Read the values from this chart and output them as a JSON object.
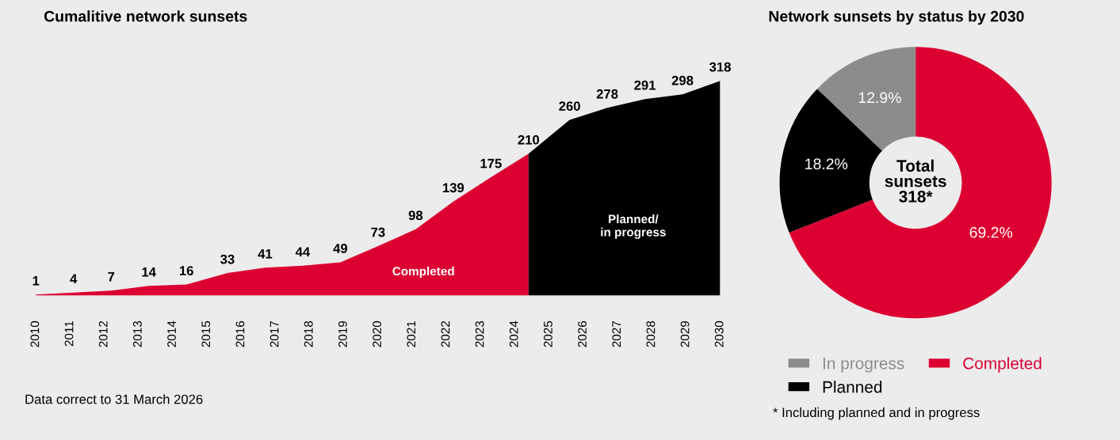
{
  "chart_data": [
    {
      "type": "area",
      "title": "Cumalitive network sunsets",
      "xlim": [
        2010,
        2030
      ],
      "xticks": [
        2010,
        2011,
        2012,
        2013,
        2014,
        2015,
        2016,
        2017,
        2018,
        2019,
        2020,
        2021,
        2022,
        2023,
        2024,
        2025,
        2026,
        2027,
        2028,
        2029,
        2030
      ],
      "tick_labels": "x",
      "legend": false,
      "series": [
        {
          "name": "Completed",
          "color": "#dc0032",
          "x": [
            2010,
            2011.1,
            2012.2,
            2013.3,
            2014.4,
            2015.6,
            2016.7,
            2017.8,
            2018.9,
            2020.0,
            2021.1,
            2022.2,
            2023.3,
            2024.4
          ],
          "values": [
            1,
            4,
            7,
            14,
            16,
            33,
            41,
            44,
            49,
            73,
            98,
            139,
            175,
            210
          ],
          "value_labels": [
            "1",
            "4",
            "7",
            "14",
            "16",
            "33",
            "41",
            "44",
            "49",
            "73",
            "98",
            "139",
            "175",
            "210"
          ]
        },
        {
          "name": "Planned/\nin progress",
          "color": "#000000",
          "x": [
            2024.4,
            2025.6,
            2026.7,
            2027.8,
            2028.9,
            2030
          ],
          "values": [
            210,
            260,
            278,
            291,
            298,
            318
          ],
          "value_labels": [
            null,
            "260",
            "278",
            "291",
            "298",
            "318"
          ]
        }
      ],
      "annotations": [
        "Data correct to 31 March 2026"
      ]
    },
    {
      "type": "donut",
      "title": "Network sunsets by status by 2030",
      "categories": [
        "Completed",
        "Planned",
        "In progress"
      ],
      "values": [
        69.2,
        18.2,
        12.9
      ],
      "colors": [
        "#dc0032",
        "#000000",
        "#8c8c8c"
      ],
      "value_labels": [
        "69.2%",
        "18.2%",
        "12.9%"
      ],
      "legend": "bottom",
      "annotations": [
        "Total\nsunsets\n318*",
        "* Including planned and in progress"
      ]
    }
  ]
}
